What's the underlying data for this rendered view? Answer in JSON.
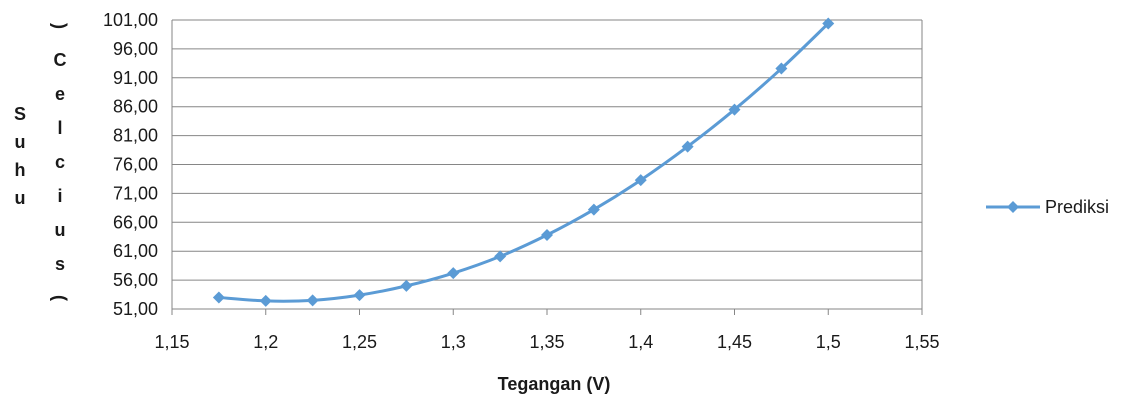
{
  "chart_data": {
    "type": "line",
    "xlabel": "Tegangan (V)",
    "ylabel_lines": [
      "S",
      "u",
      "h",
      "u"
    ],
    "ylabel_unit_lines": [
      ")",
      "C",
      "e",
      "l",
      "c",
      "i",
      "u",
      "s",
      "("
    ],
    "x_ticks": [
      "1,15",
      "1,2",
      "1,25",
      "1,3",
      "1,35",
      "1,4",
      "1,45",
      "1,5",
      "1,55"
    ],
    "y_ticks": [
      "51,00",
      "56,00",
      "61,00",
      "66,00",
      "71,00",
      "76,00",
      "81,00",
      "86,00",
      "91,00",
      "96,00",
      "101,00"
    ],
    "xlim": [
      1.15,
      1.55
    ],
    "ylim": [
      51,
      101
    ],
    "grid": "horizontal",
    "legend_position": "right",
    "series": [
      {
        "name": "Prediksi",
        "color": "#5B9BD5",
        "marker": "diamond",
        "x": [
          1.175,
          1.2,
          1.225,
          1.25,
          1.275,
          1.3,
          1.325,
          1.35,
          1.375,
          1.4,
          1.425,
          1.45,
          1.475,
          1.5
        ],
        "y": [
          53.0,
          52.4,
          52.5,
          53.4,
          55.0,
          57.2,
          60.1,
          63.8,
          68.2,
          73.3,
          79.1,
          85.5,
          92.6,
          100.4
        ]
      }
    ]
  }
}
